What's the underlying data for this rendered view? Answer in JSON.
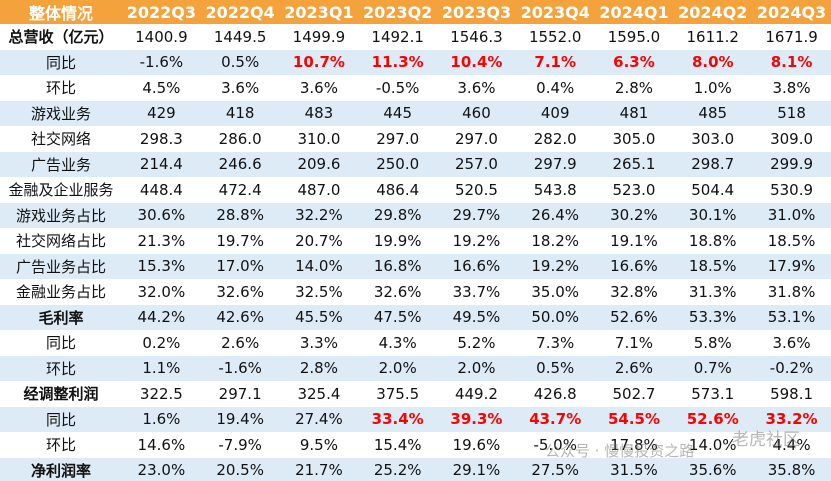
{
  "table": {
    "header": [
      "整体情况",
      "2022Q3",
      "2022Q4",
      "2023Q1",
      "2023Q2",
      "2023Q3",
      "2023Q4",
      "2024Q1",
      "2024Q2",
      "2024Q3"
    ],
    "header_color": "#f4a23c",
    "stripe_color": "#ddebf7",
    "highlight_color": "#ff0000",
    "rows": [
      {
        "label": "总营收（亿元）",
        "bold": true,
        "values": [
          "1400.9",
          "1449.5",
          "1499.9",
          "1492.1",
          "1546.3",
          "1552.0",
          "1595.0",
          "1611.2",
          "1671.9"
        ]
      },
      {
        "label": "同比",
        "values": [
          "-1.6%",
          "0.5%",
          "10.7%",
          "11.3%",
          "10.4%",
          "7.1%",
          "6.3%",
          "8.0%",
          "8.1%"
        ],
        "highlight": [
          false,
          false,
          true,
          true,
          true,
          true,
          true,
          true,
          true
        ]
      },
      {
        "label": "环比",
        "values": [
          "4.5%",
          "3.6%",
          "3.6%",
          "-0.5%",
          "3.6%",
          "0.4%",
          "2.8%",
          "1.0%",
          "3.8%"
        ]
      },
      {
        "label": "游戏业务",
        "values": [
          "429",
          "418",
          "483",
          "445",
          "460",
          "409",
          "481",
          "485",
          "518"
        ]
      },
      {
        "label": "社交网络",
        "values": [
          "298.3",
          "286.0",
          "310.0",
          "297.0",
          "297.0",
          "282.0",
          "305.0",
          "303.0",
          "309.0"
        ]
      },
      {
        "label": "广告业务",
        "values": [
          "214.4",
          "246.6",
          "209.6",
          "250.0",
          "257.0",
          "297.9",
          "265.1",
          "298.7",
          "299.9"
        ]
      },
      {
        "label": "金融及企业服务",
        "values": [
          "448.4",
          "472.4",
          "487.0",
          "486.4",
          "520.5",
          "543.8",
          "523.0",
          "504.4",
          "530.9"
        ]
      },
      {
        "label": "游戏业务占比",
        "values": [
          "30.6%",
          "28.8%",
          "32.2%",
          "29.8%",
          "29.7%",
          "26.4%",
          "30.2%",
          "30.1%",
          "31.0%"
        ]
      },
      {
        "label": "社交网络占比",
        "values": [
          "21.3%",
          "19.7%",
          "20.7%",
          "19.9%",
          "19.2%",
          "18.2%",
          "19.1%",
          "18.8%",
          "18.5%"
        ]
      },
      {
        "label": "广告业务占比",
        "values": [
          "15.3%",
          "17.0%",
          "14.0%",
          "16.8%",
          "16.6%",
          "19.2%",
          "16.6%",
          "18.5%",
          "17.9%"
        ]
      },
      {
        "label": "金融业务占比",
        "values": [
          "32.0%",
          "32.6%",
          "32.5%",
          "32.6%",
          "33.7%",
          "35.0%",
          "32.8%",
          "31.3%",
          "31.8%"
        ]
      },
      {
        "label": "毛利率",
        "bold": true,
        "values": [
          "44.2%",
          "42.6%",
          "45.5%",
          "47.5%",
          "49.5%",
          "50.0%",
          "52.6%",
          "53.3%",
          "53.1%"
        ]
      },
      {
        "label": "同比",
        "values": [
          "0.2%",
          "2.6%",
          "3.3%",
          "4.3%",
          "5.2%",
          "7.3%",
          "7.1%",
          "5.8%",
          "3.6%"
        ]
      },
      {
        "label": "环比",
        "values": [
          "1.1%",
          "-1.6%",
          "2.8%",
          "2.0%",
          "2.0%",
          "0.5%",
          "2.6%",
          "0.7%",
          "-0.2%"
        ]
      },
      {
        "label": "经调整利润",
        "bold": true,
        "values": [
          "322.5",
          "297.1",
          "325.4",
          "375.5",
          "449.2",
          "426.8",
          "502.7",
          "573.1",
          "598.1"
        ]
      },
      {
        "label": "同比",
        "values": [
          "1.6%",
          "19.4%",
          "27.4%",
          "33.4%",
          "39.3%",
          "43.7%",
          "54.5%",
          "52.6%",
          "33.2%"
        ],
        "highlight": [
          false,
          false,
          false,
          true,
          true,
          true,
          true,
          true,
          true
        ]
      },
      {
        "label": "环比",
        "values": [
          "14.6%",
          "-7.9%",
          "9.5%",
          "15.4%",
          "19.6%",
          "-5.0%",
          "17.8%",
          "14.0%",
          "4.4%"
        ]
      },
      {
        "label": "净利润率",
        "bold": true,
        "values": [
          "23.0%",
          "20.5%",
          "21.7%",
          "25.2%",
          "29.1%",
          "27.5%",
          "31.5%",
          "35.6%",
          "35.8%"
        ]
      }
    ],
    "watermark": [
      "公众号 · 慢慢投资之路",
      "老虎社区"
    ]
  }
}
